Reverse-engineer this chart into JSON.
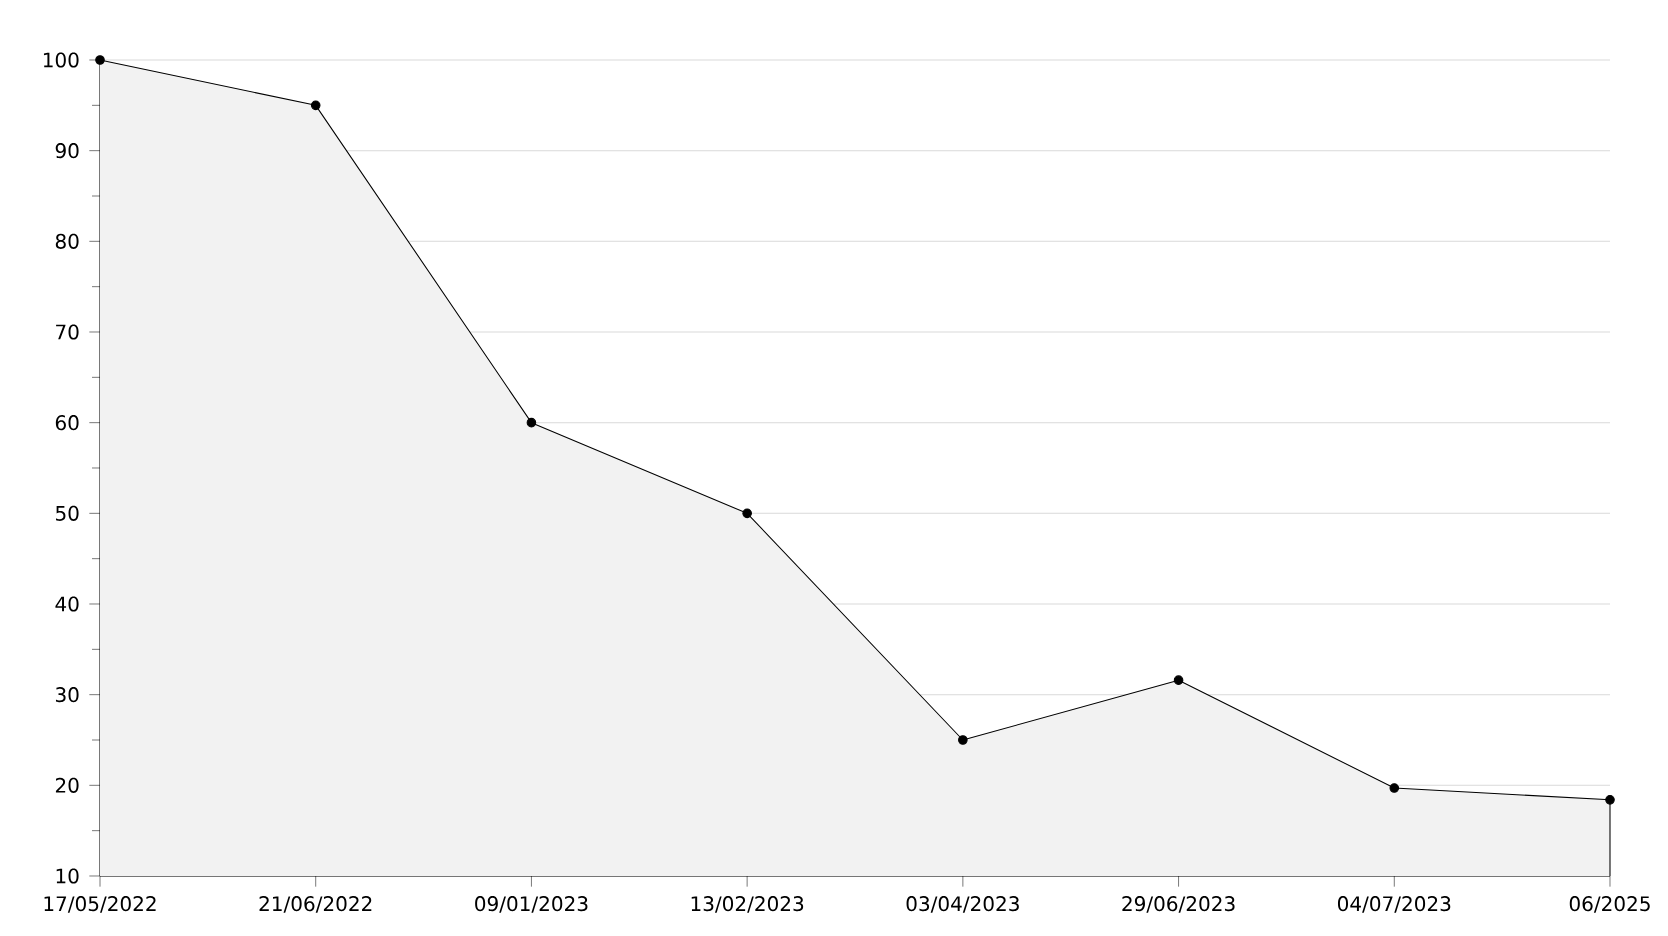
{
  "chart_data": {
    "type": "area",
    "categories": [
      "17/05/2022",
      "21/06/2022",
      "09/01/2023",
      "13/02/2023",
      "03/04/2023",
      "29/06/2023",
      "04/07/2023",
      "06/2025"
    ],
    "series": [
      {
        "color": "#000000",
        "values": [
          100,
          95,
          60,
          50,
          25,
          31.6,
          19.7,
          18.4
        ]
      }
    ],
    "ylim": [
      10,
      100
    ],
    "yticks": [
      10,
      20,
      30,
      40,
      50,
      60,
      70,
      80,
      90,
      100
    ],
    "grid": "y",
    "marker": "circle",
    "line_style": "solid"
  }
}
